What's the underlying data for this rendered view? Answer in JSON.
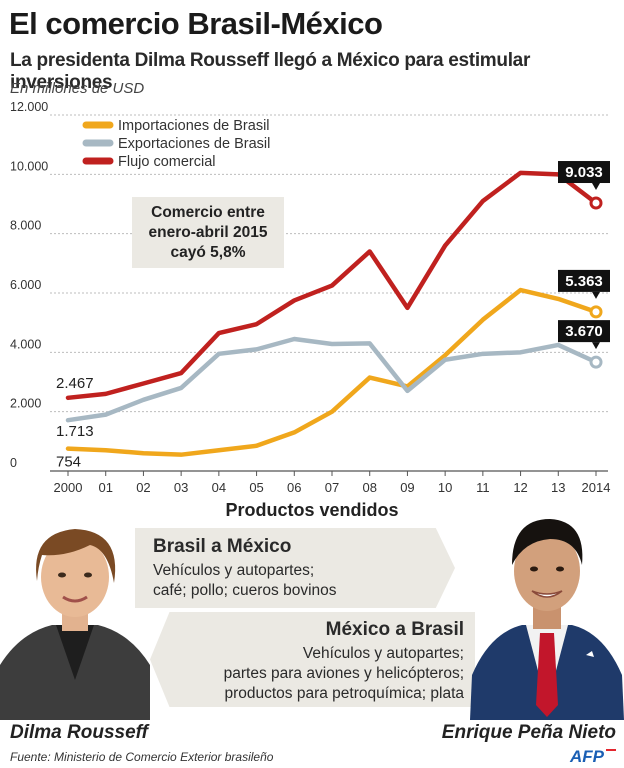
{
  "header": {
    "title": "El comercio Brasil-México",
    "subtitle": "La presidenta Dilma Rousseff llegó a México para estimular inversiones",
    "units": "En millones de USD"
  },
  "colors": {
    "importaciones": "#f0a71c",
    "exportaciones": "#a7b8c3",
    "flujo": "#c0211f",
    "grid": "#bdbdbd",
    "box": "#ebe9e3"
  },
  "chart_data": {
    "type": "line",
    "x": [
      "2000",
      "01",
      "02",
      "03",
      "04",
      "05",
      "06",
      "07",
      "08",
      "09",
      "10",
      "11",
      "12",
      "13",
      "2014"
    ],
    "ylim": [
      0,
      12000
    ],
    "yticks": [
      "0",
      "2.000",
      "4.000",
      "6.000",
      "8.000",
      "10.000",
      "12.000"
    ],
    "ytick_values": [
      0,
      2000,
      4000,
      6000,
      8000,
      10000,
      12000
    ],
    "series": [
      {
        "name": "Importaciones de Brasil",
        "key": "importaciones",
        "values": [
          754,
          700,
          600,
          550,
          700,
          850,
          1300,
          2000,
          3150,
          2850,
          3900,
          5100,
          6100,
          5800,
          5363
        ]
      },
      {
        "name": "Exportaciones de Brasil",
        "key": "exportaciones",
        "values": [
          1713,
          1900,
          2400,
          2800,
          3950,
          4100,
          4450,
          4280,
          4300,
          2700,
          3750,
          3950,
          4000,
          4250,
          3670
        ]
      },
      {
        "name": "Flujo comercial",
        "key": "flujo",
        "values": [
          2467,
          2600,
          2950,
          3300,
          4650,
          4950,
          5750,
          6250,
          7400,
          5500,
          7600,
          9100,
          10050,
          10000,
          9033
        ]
      }
    ],
    "start_labels": [
      "2.467",
      "1.713",
      "754"
    ],
    "end_labels": [
      "9.033",
      "5.363",
      "3.670"
    ],
    "annotation": [
      "Comercio entre",
      "enero-abril 2015",
      "cayó 5,8%"
    ]
  },
  "products": {
    "title": "Productos vendidos",
    "brasil_a_mexico": {
      "heading": "Brasil a México",
      "lines": [
        "Vehículos y autopartes;",
        "café; pollo; cueros bovinos"
      ]
    },
    "mexico_a_brasil": {
      "heading": "México a Brasil",
      "lines": [
        "Vehículos y autopartes;",
        "partes para aviones y helicópteros;",
        "productos para petroquímica; plata"
      ]
    }
  },
  "people": {
    "left": "Dilma Rousseff",
    "right": "Enrique Peña Nieto"
  },
  "footer": {
    "source": "Fuente: Ministerio de Comercio Exterior brasileño",
    "logo": "AFP"
  }
}
